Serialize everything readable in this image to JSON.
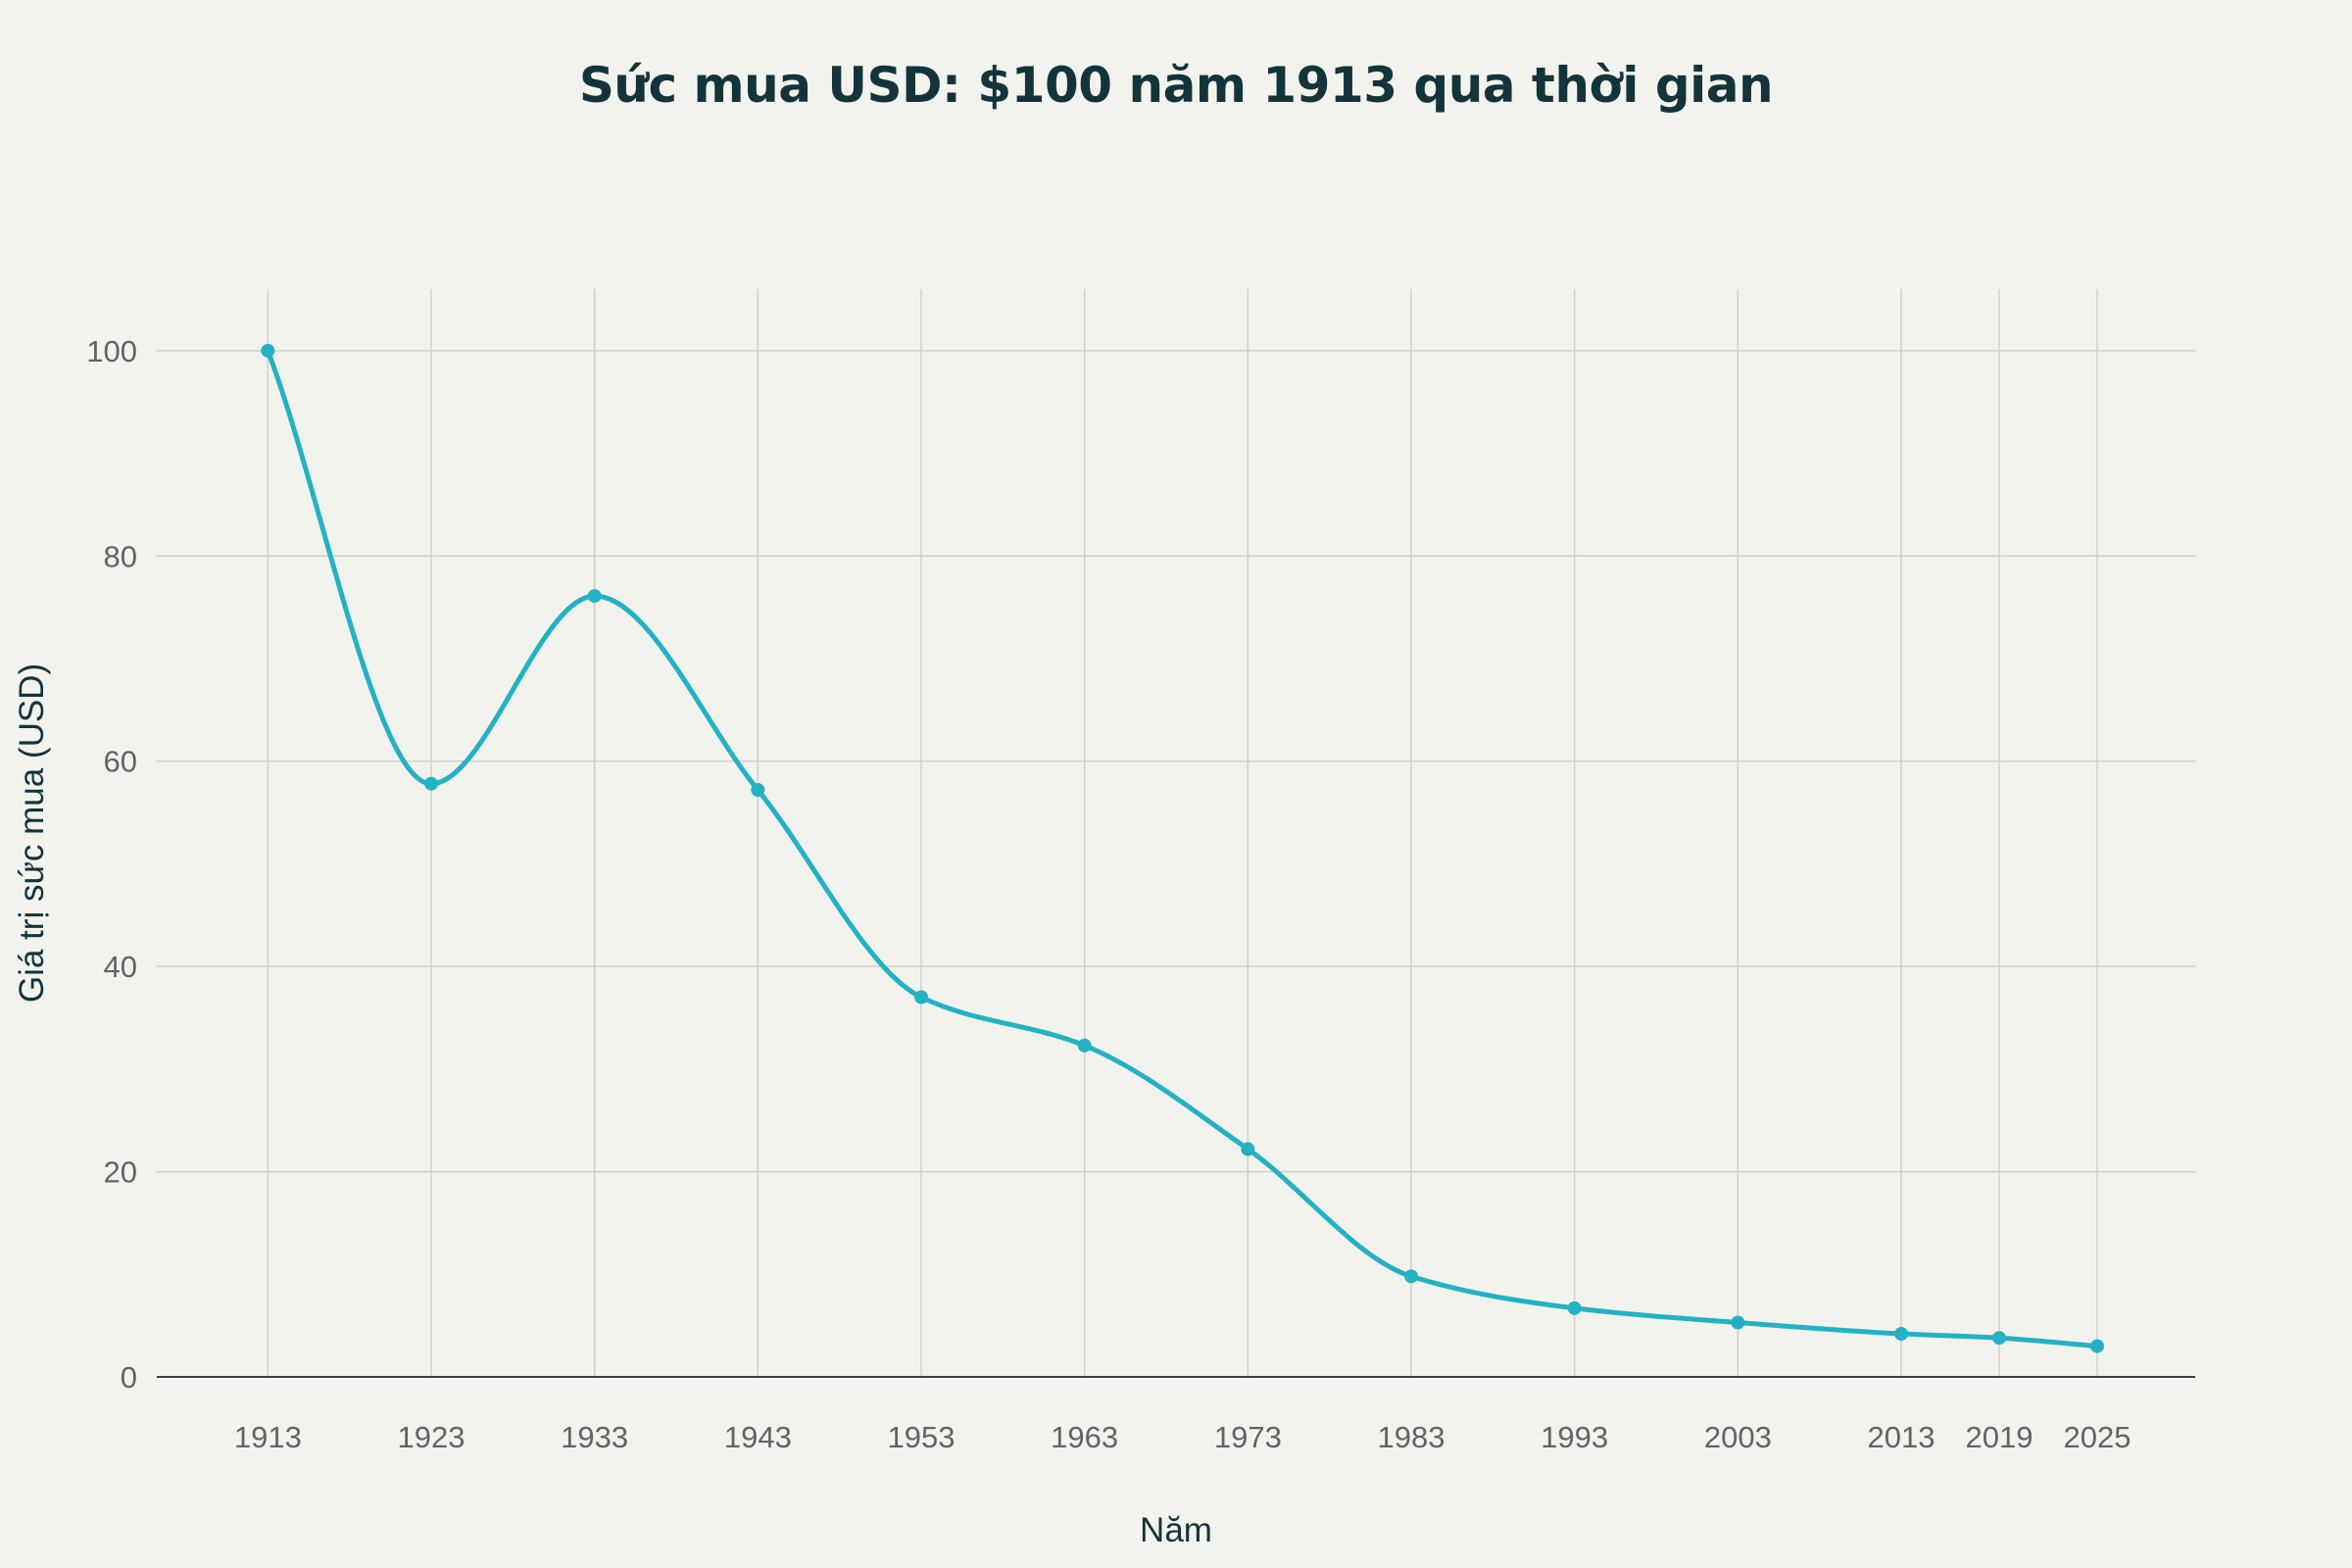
{
  "chart_data": {
    "type": "line",
    "title": "Sức mua USD: $100 năm 1913 qua thời gian",
    "xlabel": "Năm",
    "ylabel": "Giá trị sức mua (USD)",
    "x": [
      1913,
      1923,
      1933,
      1943,
      1953,
      1963,
      1973,
      1983,
      1993,
      2003,
      2013,
      2019,
      2025
    ],
    "x_tick_labels": [
      "1913",
      "1923",
      "1933",
      "1943",
      "1953",
      "1963",
      "1973",
      "1983",
      "1993",
      "2003",
      "2013",
      "2019",
      "2025"
    ],
    "series": [
      {
        "values": [
          100,
          57.8,
          76.1,
          57.2,
          37.0,
          32.3,
          22.2,
          9.8,
          6.7,
          5.3,
          4.2,
          3.8,
          3.0
        ]
      }
    ],
    "xlim": [
      1906.2,
      2031
    ],
    "ylim": [
      0,
      106
    ],
    "y_ticks": [
      0,
      20,
      40,
      60,
      80,
      100
    ],
    "y_tick_labels": [
      "0",
      "20",
      "40",
      "60",
      "80",
      "100"
    ],
    "grid": true,
    "legend": "none",
    "line_shape": "smooth",
    "markers": true,
    "colors": {
      "line": "#24b1c4",
      "grid": "#cfd0cb",
      "zero_line": "#3c3f40",
      "background": "#f3f3ee"
    }
  }
}
